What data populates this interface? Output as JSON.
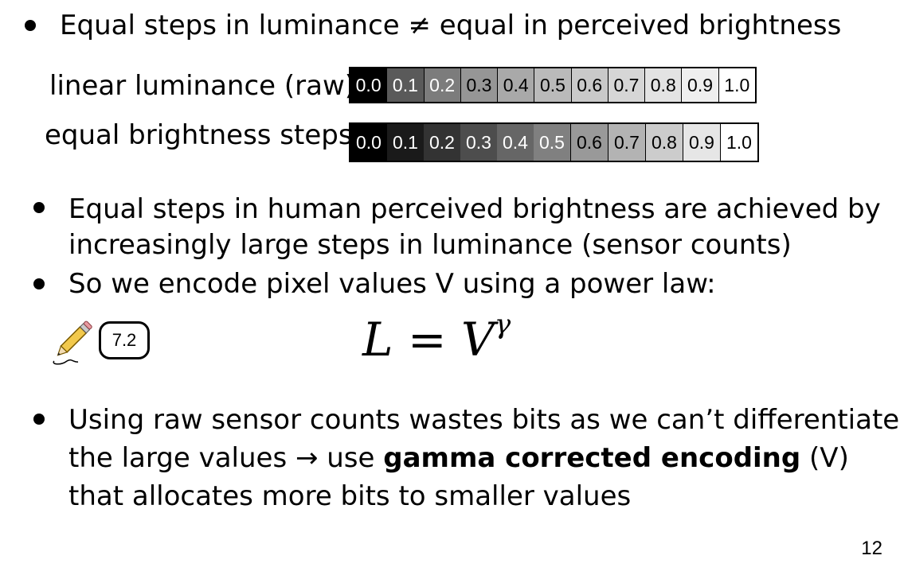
{
  "bullets": [
    {
      "text": "Equal steps in luminance ≠ equal in perceived brightness"
    },
    {
      "line1": "Equal steps in human perceived brightness are achieved by",
      "line2": "increasingly large steps in luminance (sensor counts)"
    },
    {
      "text": "So we encode pixel values V using a power law:"
    },
    {
      "line1": "Using raw sensor counts wastes bits as we can’t differentiate",
      "line2_prefix": "the large values → use ",
      "line2_bold": "gamma corrected encoding",
      "line2_suffix": " (V)",
      "line3": "that allocates more bits to smaller values"
    }
  ],
  "strips": {
    "raw": {
      "label": "linear luminance (raw)",
      "values": [
        "0.0",
        "0.1",
        "0.2",
        "0.3",
        "0.4",
        "0.5",
        "0.6",
        "0.7",
        "0.8",
        "0.9",
        "1.0"
      ],
      "fills": [
        "#000000",
        "#5a5a5a",
        "#7c7c7c",
        "#969696",
        "#a9a9a9",
        "#bababa",
        "#c9c9c9",
        "#d6d6d6",
        "#e3e3e3",
        "#efefef",
        "#ffffff"
      ],
      "text_colors": [
        "#ffffff",
        "#ffffff",
        "#ffffff",
        "#000000",
        "#000000",
        "#000000",
        "#000000",
        "#000000",
        "#000000",
        "#000000",
        "#000000"
      ]
    },
    "equal": {
      "label": "equal brightness steps",
      "values": [
        "0.0",
        "0.1",
        "0.2",
        "0.3",
        "0.4",
        "0.5",
        "0.6",
        "0.7",
        "0.8",
        "0.9",
        "1.0"
      ],
      "fills": [
        "#000000",
        "#1a1a1a",
        "#333333",
        "#4d4d4d",
        "#666666",
        "#808080",
        "#999999",
        "#b3b3b3",
        "#cccccc",
        "#e6e6e6",
        "#ffffff"
      ],
      "text_colors": [
        "#ffffff",
        "#ffffff",
        "#ffffff",
        "#ffffff",
        "#ffffff",
        "#ffffff",
        "#000000",
        "#000000",
        "#000000",
        "#000000",
        "#000000"
      ]
    }
  },
  "sticker": {
    "label": "7.2",
    "icon": "pencil-icon"
  },
  "formula": {
    "lhs": "L",
    "eq": "=",
    "base": "V",
    "exponent": "γ"
  },
  "page_number": "12"
}
